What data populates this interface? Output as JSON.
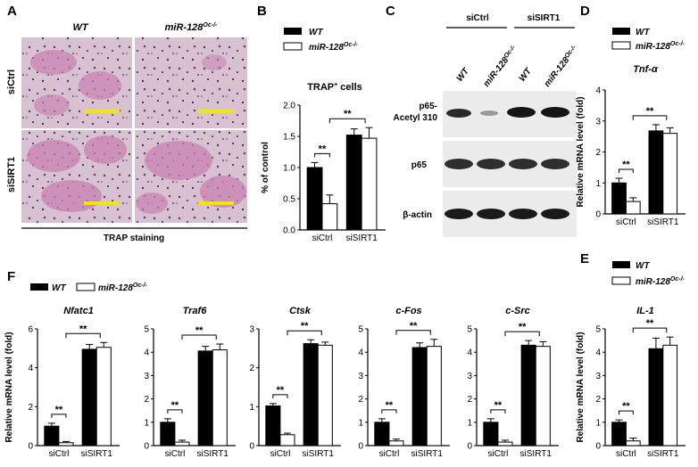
{
  "panels": {
    "A": {
      "letter": "A",
      "col_wt": "WT",
      "col_ko": "miR-128",
      "col_ko_sup": "Oc-/-",
      "row1": "siCtrl",
      "row2": "siSIRT1",
      "caption": "TRAP staining"
    },
    "B": {
      "letter": "B",
      "title": "TRAP",
      "title_sup": "+",
      "title_rest": " cells"
    },
    "C": {
      "letter": "C",
      "group1": "siCtrl",
      "group2": "siSIRT1",
      "lanes": [
        "WT",
        "miR-128",
        "WT",
        "miR-128"
      ],
      "lane_sup": "Oc-/-",
      "band1_l1": "p65-",
      "band1_l2": "Acetyl 310",
      "band2": "p65",
      "band3": "β-actin"
    },
    "D": {
      "letter": "D"
    },
    "E": {
      "letter": "E"
    },
    "F": {
      "letter": "F"
    }
  },
  "legend": {
    "wt": "WT",
    "ko": "miR-128",
    "ko_sup": "Oc-/-"
  },
  "sig": "**",
  "chart_data": [
    {
      "id": "B",
      "type": "bar",
      "title": "TRAP+ cells",
      "ylabel": "% of control",
      "categories": [
        "siCtrl",
        "siSIRT1"
      ],
      "ylim": [
        0,
        2.0
      ],
      "yticks": [
        "0.0",
        "0.5",
        "1.0",
        "1.5",
        "2.0"
      ],
      "series": [
        {
          "name": "WT",
          "values": [
            1.0,
            1.52
          ],
          "err": [
            0.08,
            0.1
          ]
        },
        {
          "name": "miR-128Oc-/-",
          "values": [
            0.42,
            1.47
          ],
          "err": [
            0.14,
            0.17
          ]
        }
      ]
    },
    {
      "id": "D",
      "type": "bar",
      "title": "Tnf-α",
      "ylabel": "Relative mRNA level (fold)",
      "categories": [
        "siCtrl",
        "siSIRT1"
      ],
      "ylim": [
        0,
        4
      ],
      "yticks": [
        "0",
        "1",
        "2",
        "3",
        "4"
      ],
      "series": [
        {
          "name": "WT",
          "values": [
            1.0,
            2.68
          ],
          "err": [
            0.15,
            0.2
          ]
        },
        {
          "name": "miR-128Oc-/-",
          "values": [
            0.4,
            2.6
          ],
          "err": [
            0.12,
            0.18
          ]
        }
      ]
    },
    {
      "id": "F1",
      "type": "bar",
      "title": "Nfatc1",
      "ylabel": "Relative mRNA level (fold)",
      "categories": [
        "siCtrl",
        "siSIRT1"
      ],
      "ylim": [
        0,
        6
      ],
      "yticks": [
        "0",
        "2",
        "4",
        "6"
      ],
      "series": [
        {
          "name": "WT",
          "values": [
            1.0,
            4.95
          ],
          "err": [
            0.15,
            0.25
          ]
        },
        {
          "name": "miR-128Oc-/-",
          "values": [
            0.15,
            5.05
          ],
          "err": [
            0.06,
            0.25
          ]
        }
      ]
    },
    {
      "id": "F2",
      "type": "bar",
      "title": "Traf6",
      "categories": [
        "siCtrl",
        "siSIRT1"
      ],
      "ylim": [
        0,
        5
      ],
      "yticks": [
        "0",
        "1",
        "2",
        "3",
        "4",
        "5"
      ],
      "series": [
        {
          "name": "WT",
          "values": [
            1.0,
            4.05
          ],
          "err": [
            0.15,
            0.2
          ]
        },
        {
          "name": "miR-128Oc-/-",
          "values": [
            0.15,
            4.1
          ],
          "err": [
            0.08,
            0.25
          ]
        }
      ]
    },
    {
      "id": "F3",
      "type": "bar",
      "title": "Ctsk",
      "categories": [
        "siCtrl",
        "siSIRT1"
      ],
      "ylim": [
        0,
        3
      ],
      "yticks": [
        "0",
        "1",
        "2",
        "3"
      ],
      "series": [
        {
          "name": "WT",
          "values": [
            1.02,
            2.62
          ],
          "err": [
            0.06,
            0.1
          ]
        },
        {
          "name": "miR-128Oc-/-",
          "values": [
            0.28,
            2.58
          ],
          "err": [
            0.04,
            0.08
          ]
        }
      ]
    },
    {
      "id": "F4",
      "type": "bar",
      "title": "c-Fos",
      "categories": [
        "siCtrl",
        "siSIRT1"
      ],
      "ylim": [
        0,
        5
      ],
      "yticks": [
        "0",
        "1",
        "2",
        "3",
        "4",
        "5"
      ],
      "series": [
        {
          "name": "WT",
          "values": [
            1.0,
            4.2
          ],
          "err": [
            0.15,
            0.2
          ]
        },
        {
          "name": "miR-128Oc-/-",
          "values": [
            0.2,
            4.25
          ],
          "err": [
            0.08,
            0.3
          ]
        }
      ]
    },
    {
      "id": "F5",
      "type": "bar",
      "title": "c-Src",
      "categories": [
        "siCtrl",
        "siSIRT1"
      ],
      "ylim": [
        0,
        5
      ],
      "yticks": [
        "0",
        "1",
        "2",
        "3",
        "4",
        "5"
      ],
      "series": [
        {
          "name": "WT",
          "values": [
            1.0,
            4.3
          ],
          "err": [
            0.15,
            0.2
          ]
        },
        {
          "name": "miR-128Oc-/-",
          "values": [
            0.15,
            4.25
          ],
          "err": [
            0.08,
            0.2
          ]
        }
      ]
    },
    {
      "id": "E",
      "type": "bar",
      "title": "IL-1",
      "ylabel": "Relative mRNA level (fold)",
      "categories": [
        "siCtrl",
        "siSIRT1"
      ],
      "ylim": [
        0,
        5
      ],
      "yticks": [
        "0",
        "1",
        "2",
        "3",
        "4",
        "5"
      ],
      "series": [
        {
          "name": "WT",
          "values": [
            1.0,
            4.15
          ],
          "err": [
            0.1,
            0.45
          ]
        },
        {
          "name": "miR-128Oc-/-",
          "values": [
            0.2,
            4.3
          ],
          "err": [
            0.12,
            0.35
          ]
        }
      ]
    }
  ]
}
